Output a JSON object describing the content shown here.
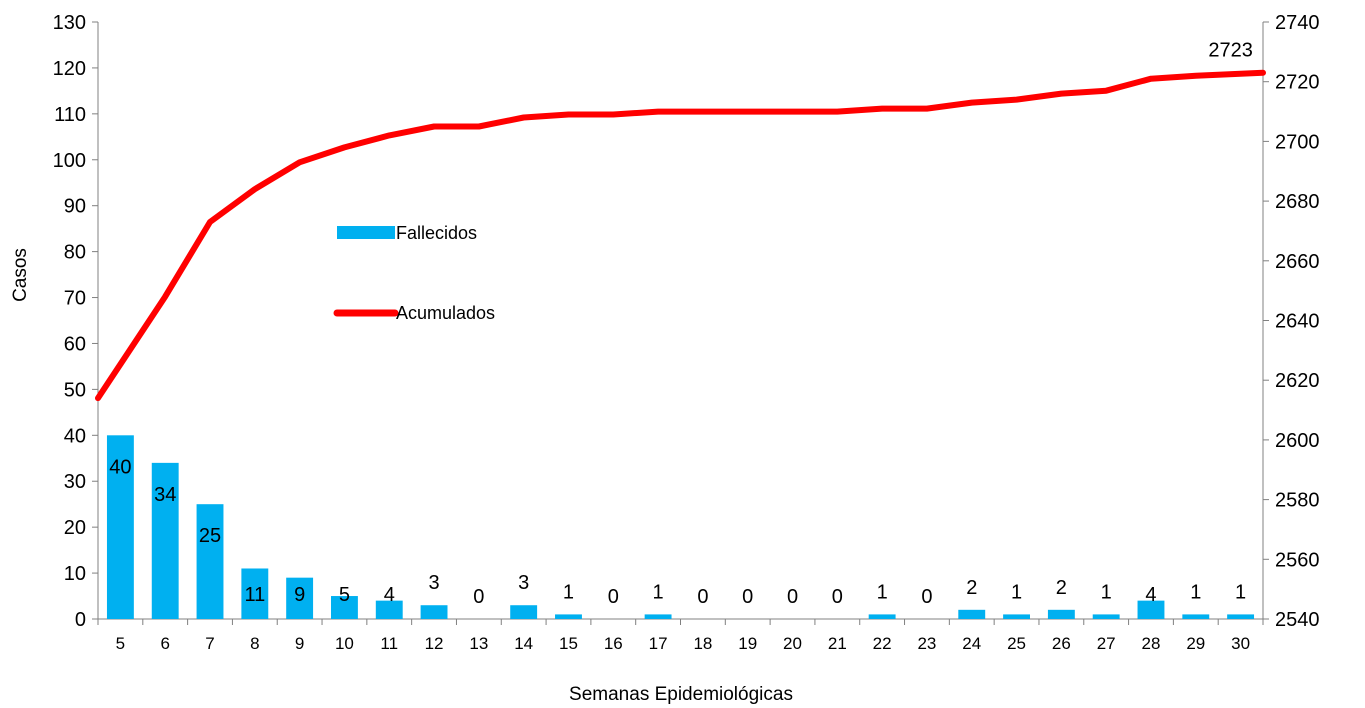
{
  "chart_data": {
    "type": "bar+line",
    "xlabel": "Semanas Epidemiológicas",
    "ylabel": "Casos",
    "categories": [
      "5",
      "6",
      "7",
      "8",
      "9",
      "10",
      "11",
      "12",
      "13",
      "14",
      "15",
      "16",
      "17",
      "18",
      "19",
      "20",
      "21",
      "22",
      "23",
      "24",
      "25",
      "26",
      "27",
      "28",
      "29",
      "30"
    ],
    "ylim_left": [
      0,
      130
    ],
    "yticks_left": [
      0,
      10,
      20,
      30,
      40,
      50,
      60,
      70,
      80,
      90,
      100,
      110,
      120,
      130
    ],
    "ylim_right": [
      2540,
      2740
    ],
    "yticks_right": [
      2540,
      2560,
      2580,
      2600,
      2620,
      2640,
      2660,
      2680,
      2700,
      2720,
      2740
    ],
    "series": [
      {
        "name": "Fallecidos",
        "type": "bar",
        "axis": "left",
        "color": "#00B0F0",
        "values": [
          40,
          34,
          25,
          11,
          9,
          5,
          4,
          3,
          0,
          3,
          1,
          0,
          1,
          0,
          0,
          0,
          0,
          1,
          0,
          2,
          1,
          2,
          1,
          4,
          1,
          1
        ],
        "data_labels": [
          "40",
          "34",
          "25",
          "11",
          "9",
          "5",
          "4",
          "3",
          "0",
          "3",
          "1",
          "0",
          "1",
          "0",
          "0",
          "0",
          "0",
          "1",
          "0",
          "2",
          "1",
          "2",
          "1",
          "4",
          "1",
          "1"
        ]
      },
      {
        "name": "Acumulados",
        "type": "line",
        "axis": "right",
        "color": "#FF0000",
        "values": [
          2614,
          2648,
          2673,
          2684,
          2693,
          2698,
          2702,
          2705,
          2705,
          2708,
          2709,
          2709,
          2710,
          2710,
          2710,
          2710,
          2710,
          2711,
          2711,
          2713,
          2714,
          2716,
          2717,
          2721,
          2722,
          2723
        ],
        "end_label": "2723"
      }
    ],
    "grid": false,
    "legend_position": "center-left"
  }
}
